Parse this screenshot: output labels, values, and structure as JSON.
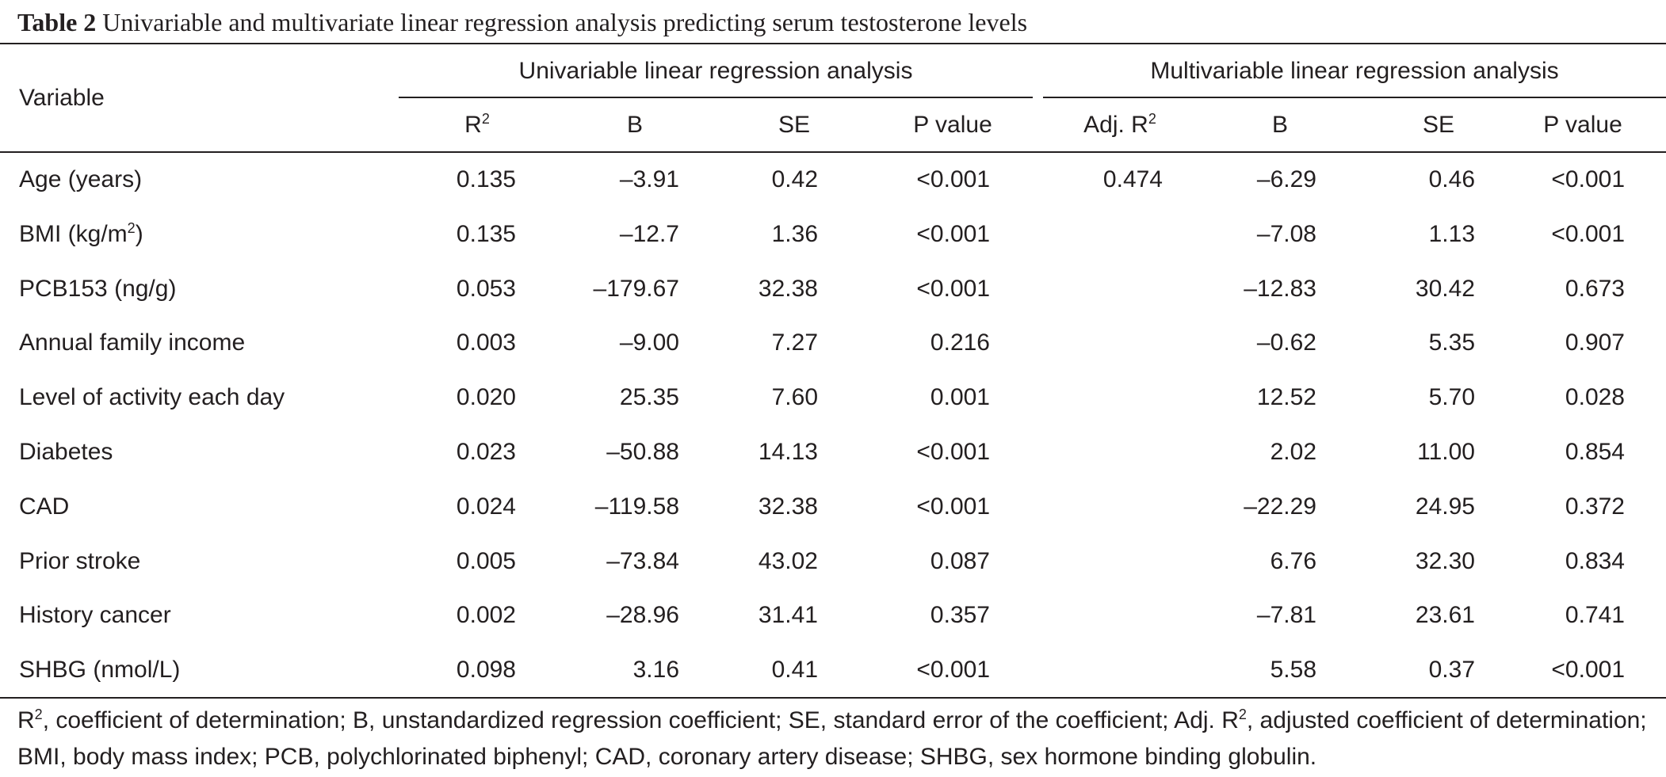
{
  "table": {
    "caption_label": "Table 2",
    "caption_text": "Univariable and multivariate linear regression analysis predicting serum testosterone levels",
    "variable_header": "Variable",
    "group_univariable": "Univariable linear regression analysis",
    "group_multivariable": "Multivariable linear regression analysis",
    "columns": {
      "r2": "R",
      "r2_sup": "2",
      "b1": "B",
      "se1": "SE",
      "p1": "P value",
      "adj_r2": "Adj. R",
      "adj_r2_sup": "2",
      "b2": "B",
      "se2": "SE",
      "p2": "P value"
    },
    "rows": [
      {
        "label": "Age (years)",
        "label_sup": "",
        "label_after": "",
        "r2": "0.135",
        "b1": "–3.91",
        "se1": "0.42",
        "p1": "<0.001",
        "adj_r2": "0.474",
        "b2": "–6.29",
        "se2": "0.46",
        "p2": "<0.001"
      },
      {
        "label": "BMI (kg/m",
        "label_sup": "2",
        "label_after": ")",
        "r2": "0.135",
        "b1": "–12.7",
        "se1": "1.36",
        "p1": "<0.001",
        "adj_r2": "",
        "b2": "–7.08",
        "se2": "1.13",
        "p2": "<0.001"
      },
      {
        "label": "PCB153 (ng/g)",
        "label_sup": "",
        "label_after": "",
        "r2": "0.053",
        "b1": "–179.67",
        "se1": "32.38",
        "p1": "<0.001",
        "adj_r2": "",
        "b2": "–12.83",
        "se2": "30.42",
        "p2": "0.673"
      },
      {
        "label": "Annual family income",
        "label_sup": "",
        "label_after": "",
        "r2": "0.003",
        "b1": "–9.00",
        "se1": "7.27",
        "p1": "0.216",
        "adj_r2": "",
        "b2": "–0.62",
        "se2": "5.35",
        "p2": "0.907"
      },
      {
        "label": "Level of activity each day",
        "label_sup": "",
        "label_after": "",
        "r2": "0.020",
        "b1": "25.35",
        "se1": "7.60",
        "p1": "0.001",
        "adj_r2": "",
        "b2": "12.52",
        "se2": "5.70",
        "p2": "0.028"
      },
      {
        "label": "Diabetes",
        "label_sup": "",
        "label_after": "",
        "r2": "0.023",
        "b1": "–50.88",
        "se1": "14.13",
        "p1": "<0.001",
        "adj_r2": "",
        "b2": "2.02",
        "se2": "11.00",
        "p2": "0.854"
      },
      {
        "label": "CAD",
        "label_sup": "",
        "label_after": "",
        "r2": "0.024",
        "b1": "–119.58",
        "se1": "32.38",
        "p1": "<0.001",
        "adj_r2": "",
        "b2": "–22.29",
        "se2": "24.95",
        "p2": "0.372"
      },
      {
        "label": "Prior stroke",
        "label_sup": "",
        "label_after": "",
        "r2": "0.005",
        "b1": "–73.84",
        "se1": "43.02",
        "p1": "0.087",
        "adj_r2": "",
        "b2": "6.76",
        "se2": "32.30",
        "p2": "0.834"
      },
      {
        "label": "History cancer",
        "label_sup": "",
        "label_after": "",
        "r2": "0.002",
        "b1": "–28.96",
        "se1": "31.41",
        "p1": "0.357",
        "adj_r2": "",
        "b2": "–7.81",
        "se2": "23.61",
        "p2": "0.741"
      },
      {
        "label": "SHBG (nmol/L)",
        "label_sup": "",
        "label_after": "",
        "r2": "0.098",
        "b1": "3.16",
        "se1": "0.41",
        "p1": "<0.001",
        "adj_r2": "",
        "b2": "5.58",
        "se2": "0.37",
        "p2": "<0.001"
      }
    ],
    "footnote": {
      "part1": "R",
      "sup1": "2",
      "part2": ", coefficient of determination; B, unstandardized regression coefficient; SE, standard error of the coefficient; Adj. R",
      "sup2": "2",
      "part3": ", adjusted coefficient of determination; BMI, body mass index; PCB, polychlorinated biphenyl; CAD, coronary artery disease; SHBG, sex hormone binding globulin."
    }
  }
}
